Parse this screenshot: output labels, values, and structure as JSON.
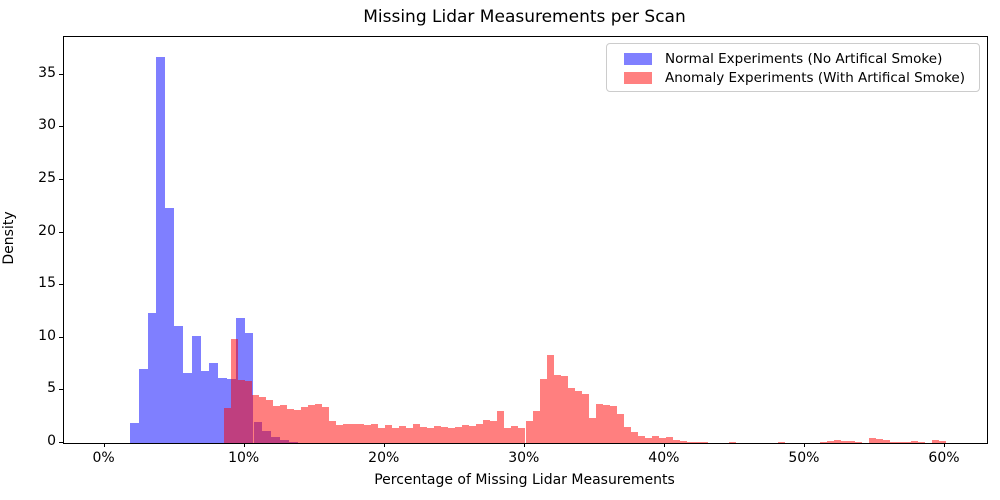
{
  "title": "Missing Lidar Measurements per Scan",
  "legend": {
    "entries": [
      {
        "label": "Normal Experiments (No Artifical Smoke)",
        "swatch_color": "#8080ff"
      },
      {
        "label": "Anomaly Experiments (With Artifical Smoke)",
        "swatch_color": "#ff8080"
      }
    ]
  },
  "chart_data": {
    "type": "bar",
    "subtype": "overlaid-density-histogram",
    "title": "Missing Lidar Measurements per Scan",
    "xlabel": "Percentage of Missing Lidar Measurements",
    "ylabel": "Density",
    "xlim": [
      -2.9,
      63.0
    ],
    "ylim": [
      0,
      38.6
    ],
    "grid": false,
    "legend_position": "upper right",
    "x_ticks": [
      {
        "value": 0,
        "label": "0%"
      },
      {
        "value": 10,
        "label": "10%"
      },
      {
        "value": 20,
        "label": "20%"
      },
      {
        "value": 30,
        "label": "30%"
      },
      {
        "value": 40,
        "label": "40%"
      },
      {
        "value": 50,
        "label": "50%"
      },
      {
        "value": 60,
        "label": "60%"
      }
    ],
    "y_ticks": [
      {
        "value": 0,
        "label": "0"
      },
      {
        "value": 5,
        "label": "5"
      },
      {
        "value": 10,
        "label": "10"
      },
      {
        "value": 15,
        "label": "15"
      },
      {
        "value": 20,
        "label": "20"
      },
      {
        "value": 25,
        "label": "25"
      },
      {
        "value": 30,
        "label": "30"
      },
      {
        "value": 35,
        "label": "35"
      }
    ],
    "series": [
      {
        "name": "Normal Experiments (No Artifical Smoke)",
        "color": "#0000ff",
        "alpha": 0.5,
        "bin_start_pct": 1.81,
        "bin_width_pct": 0.63,
        "densities": [
          1.9,
          7.0,
          12.4,
          36.7,
          22.3,
          11.1,
          6.7,
          10.2,
          6.8,
          7.6,
          6.2,
          6.1,
          11.9,
          10.5,
          2.0,
          1.1,
          0.6,
          0.3,
          0.1
        ]
      },
      {
        "name": "Anomaly Experiments (With Artifical Smoke)",
        "color": "#ff0000",
        "alpha": 0.5,
        "bin_start_pct": 8.55,
        "bin_width_pct": 0.5,
        "densities": [
          3.3,
          9.9,
          6.0,
          5.9,
          4.6,
          4.4,
          4.1,
          3.5,
          3.6,
          3.2,
          3.1,
          3.4,
          3.6,
          3.7,
          3.4,
          2.1,
          1.7,
          1.8,
          1.8,
          1.8,
          1.7,
          1.8,
          1.4,
          1.7,
          1.4,
          1.6,
          1.4,
          1.8,
          1.5,
          1.4,
          1.6,
          1.5,
          1.4,
          1.5,
          1.7,
          1.6,
          1.8,
          2.2,
          2.1,
          3.0,
          1.4,
          1.6,
          1.4,
          2.1,
          3.0,
          6.1,
          8.4,
          6.5,
          6.4,
          5.2,
          4.9,
          4.7,
          2.4,
          3.7,
          3.6,
          3.5,
          2.8,
          1.5,
          1.0,
          0.7,
          0.5,
          0.7,
          0.5,
          0.6,
          0.3,
          0.2,
          0.1,
          0.1,
          0.1,
          0.0,
          0.0,
          0.0,
          0.1,
          0.0,
          0.0,
          0.0,
          0.0,
          0.0,
          0.0,
          0.1,
          0.0,
          0.0,
          0.0,
          0.0,
          0.0,
          0.1,
          0.2,
          0.3,
          0.2,
          0.2,
          0.1,
          0.0,
          0.5,
          0.4,
          0.3,
          0.1,
          0.1,
          0.1,
          0.2,
          0.1,
          0.0,
          0.3,
          0.2,
          0.0
        ]
      }
    ]
  }
}
